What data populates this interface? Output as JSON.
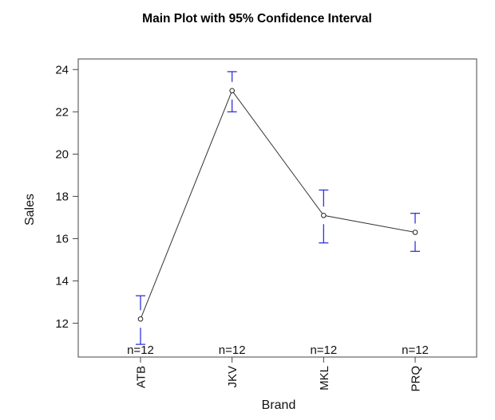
{
  "window": {
    "background": "#ffffff"
  },
  "chart_data": {
    "type": "line",
    "title": "Main Plot with 95% Confidence Interval",
    "xlabel": "Brand",
    "ylabel": "Sales",
    "categories": [
      "ATB",
      "JKV",
      "MKL",
      "PRQ"
    ],
    "series": [
      {
        "name": "Mean Sales",
        "values": [
          12.2,
          23.0,
          17.1,
          16.3
        ]
      },
      {
        "name": "CI lower 95%",
        "values": [
          11.0,
          22.0,
          15.8,
          15.4
        ]
      },
      {
        "name": "CI upper 95%",
        "values": [
          13.3,
          23.9,
          18.3,
          17.2
        ]
      }
    ],
    "point_annotations": [
      "n=12",
      "n=12",
      "n=12",
      "n=12"
    ],
    "yticks": [
      12,
      14,
      16,
      18,
      20,
      22,
      24
    ],
    "ylim": [
      10.4,
      24.5
    ],
    "grid": false,
    "legend": "none",
    "marker": "open-circle",
    "colors": {
      "ci": "#3333DD",
      "line": "#333333",
      "marker_stroke": "#222222",
      "marker_fill": "#ffffff",
      "axis": "#454545",
      "text": "#111111"
    }
  }
}
